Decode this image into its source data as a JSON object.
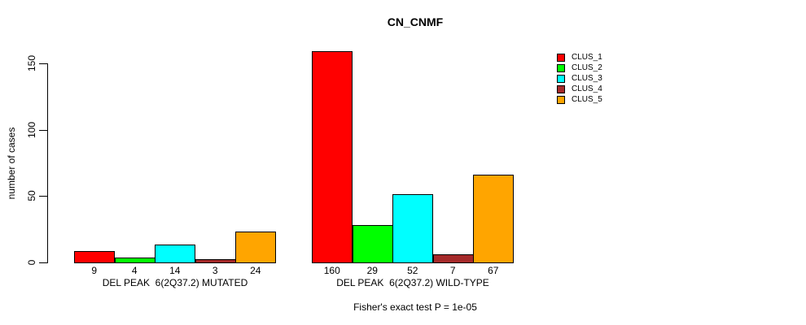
{
  "chart_data": {
    "type": "bar",
    "title": "CN_CNMF",
    "ylabel": "number of cases",
    "ylim": [
      0,
      160
    ],
    "yticks": [
      0,
      50,
      100,
      150
    ],
    "grid": false,
    "legend_position": "top-right",
    "categories": [
      "DEL PEAK  6(2Q37.2) MUTATED",
      "DEL PEAK  6(2Q37.2) WILD-TYPE"
    ],
    "series": [
      {
        "name": "CLUS_1",
        "color": "#FF0000",
        "values": [
          9,
          160
        ]
      },
      {
        "name": "CLUS_2",
        "color": "#00FF00",
        "values": [
          4,
          29
        ]
      },
      {
        "name": "CLUS_3",
        "color": "#00FFFF",
        "values": [
          14,
          52
        ]
      },
      {
        "name": "CLUS_4",
        "color": "#A52A2A",
        "values": [
          3,
          7
        ]
      },
      {
        "name": "CLUS_5",
        "color": "#FFA500",
        "values": [
          24,
          67
        ]
      }
    ],
    "bar_value_labels": true,
    "annotation": "Fisher's exact test P = 1e-05"
  }
}
